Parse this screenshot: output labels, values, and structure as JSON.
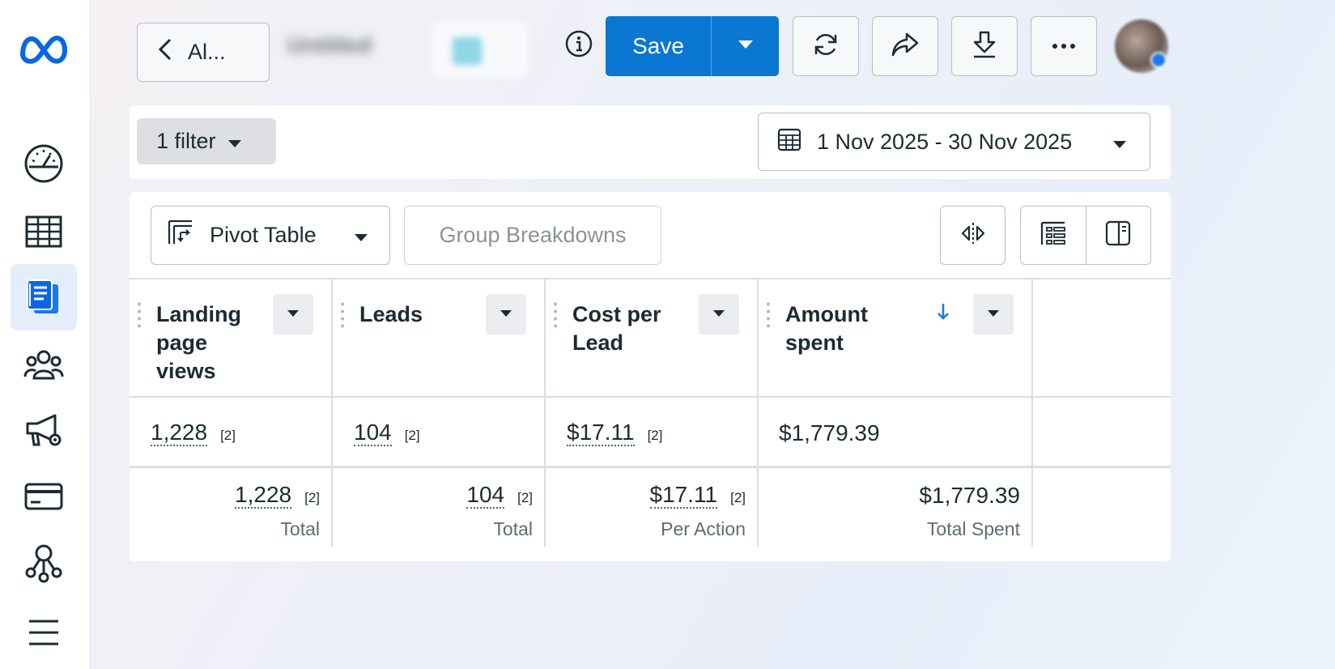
{
  "topbar": {
    "back_label": "Al...",
    "blurred_name": "Untitled",
    "save_label": "Save"
  },
  "filters": {
    "filter_chip": "1 filter",
    "date_range": "1 Nov 2025 - 30 Nov 2025"
  },
  "toolbar": {
    "pivot_label": "Pivot Table",
    "group_breakdowns_label": "Group Breakdowns"
  },
  "table": {
    "columns": [
      {
        "title_lines": [
          "Landing",
          "page",
          "views"
        ],
        "value": "1,228",
        "ref": "[2]",
        "total": "1,228",
        "total_ref": "[2]",
        "total_label": "Total"
      },
      {
        "title_lines": [
          "Leads"
        ],
        "value": "104",
        "ref": "[2]",
        "total": "104",
        "total_ref": "[2]",
        "total_label": "Total"
      },
      {
        "title_lines": [
          "Cost per",
          "Lead"
        ],
        "value": "$17.11",
        "ref": "[2]",
        "total": "$17.11",
        "total_ref": "[2]",
        "total_label": "Per Action"
      },
      {
        "title_lines": [
          "Amount",
          "spent"
        ],
        "value": "$1,779.39",
        "ref": "",
        "total": "$1,779.39",
        "total_ref": "",
        "total_label": "Total Spent",
        "sorted": "descending"
      }
    ]
  },
  "colors": {
    "primary": "#0a78d2",
    "active_nav_bg": "#e3eefa",
    "sort_arrow": "#1877f2"
  },
  "icons": [
    "meta-logo-icon",
    "dashboard-gauge-icon",
    "table-icon",
    "reports-icon",
    "audiences-icon",
    "ads-manager-icon",
    "billing-card-icon",
    "business-tree-icon",
    "menu-icon",
    "chevron-left-icon",
    "info-icon",
    "caret-down-icon",
    "refresh-icon",
    "share-icon",
    "download-icon",
    "more-icon",
    "calendar-icon",
    "pivot-icon",
    "compare-icon",
    "columns-icon",
    "side-panel-icon",
    "sort-down-icon"
  ]
}
